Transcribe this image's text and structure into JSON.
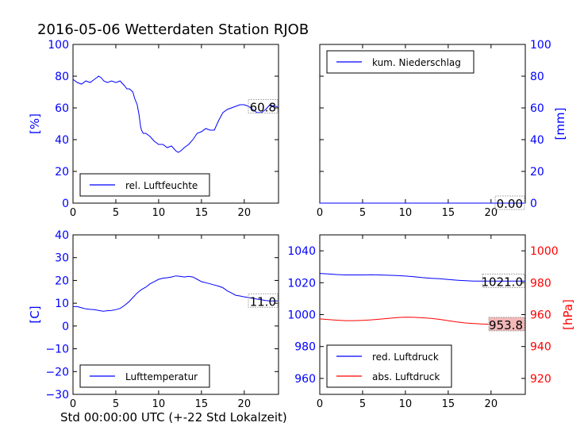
{
  "title": "2016-05-06 Wetterdaten Station RJOB",
  "xlabel": "Std 00:00:00 UTC (+-22 Std Lokalzeit)",
  "colors": {
    "blue": "#0000ff",
    "red": "#ff0000"
  },
  "chart_data": [
    {
      "type": "line",
      "ylabel": "[%]",
      "xlim": [
        0,
        24
      ],
      "ylim": [
        0,
        100
      ],
      "xticks": [
        "0",
        "5",
        "10",
        "15",
        "20"
      ],
      "yticks": [
        "0",
        "20",
        "40",
        "60",
        "80",
        "100"
      ],
      "series": [
        {
          "name": "rel. Luftfeuchte",
          "color": "#0000ff",
          "x": [
            0,
            0.5,
            1,
            1.5,
            2,
            2.5,
            3,
            3.3,
            3.6,
            4,
            4.5,
            5,
            5.5,
            6,
            6.3,
            6.6,
            7,
            7.2,
            7.5,
            7.7,
            7.9,
            8,
            8.2,
            8.5,
            9,
            9.5,
            10,
            10.5,
            11,
            11.5,
            12,
            12.3,
            12.6,
            13,
            13.5,
            14,
            14.5,
            15,
            15.5,
            16,
            16.5,
            17,
            17.5,
            18,
            18.5,
            19,
            19.5,
            20,
            20.5,
            21,
            21.5,
            22,
            22.5,
            23,
            23.5,
            24
          ],
          "y": [
            78,
            76,
            75,
            77,
            76,
            78,
            80,
            79,
            77,
            76,
            77,
            76,
            77,
            74,
            72,
            72,
            70,
            66,
            62,
            56,
            48,
            46,
            44,
            44,
            42,
            39,
            37,
            37,
            35,
            36,
            33,
            32,
            33,
            35,
            37,
            40,
            44,
            45,
            47,
            46,
            46,
            52,
            57,
            59,
            60,
            61,
            62,
            62,
            61,
            59,
            57,
            57,
            59,
            62,
            61,
            60.8
          ]
        }
      ],
      "legend": "lower-left",
      "end_label": "60.8"
    },
    {
      "type": "line",
      "ylabel": "[mm]",
      "xlim": [
        0,
        24
      ],
      "ylim": [
        0,
        100
      ],
      "xticks": [
        "0",
        "5",
        "10",
        "15",
        "20"
      ],
      "yticks": [
        "0",
        "20",
        "40",
        "60",
        "80",
        "100"
      ],
      "y_axis_side": "right",
      "series": [
        {
          "name": "kum. Niederschlag",
          "color": "#0000ff",
          "x": [
            0,
            24
          ],
          "y": [
            0,
            0
          ]
        }
      ],
      "legend": "upper-left",
      "end_label": "0.00"
    },
    {
      "type": "line",
      "ylabel": "[C]",
      "xlim": [
        0,
        24
      ],
      "ylim": [
        -30,
        40
      ],
      "xticks": [
        "0",
        "5",
        "10",
        "15",
        "20"
      ],
      "yticks": [
        "−30",
        "−20",
        "−10",
        "0",
        "10",
        "20",
        "30",
        "40"
      ],
      "series": [
        {
          "name": "Lufttemperatur",
          "color": "#0000ff",
          "x": [
            0,
            0.5,
            1,
            1.5,
            2,
            2.5,
            3,
            3.5,
            4,
            4.5,
            5,
            5.5,
            6,
            6.5,
            7,
            7.5,
            8,
            8.5,
            9,
            9.5,
            10,
            10.5,
            11,
            11.5,
            12,
            12.5,
            13,
            13.5,
            14,
            14.5,
            15,
            15.5,
            16,
            16.5,
            17,
            17.5,
            18,
            18.5,
            19,
            19.5,
            20,
            20.5,
            21,
            21.5,
            22,
            22.5,
            23,
            23.5,
            24
          ],
          "y": [
            8.5,
            8.5,
            8,
            7.5,
            7.3,
            7.2,
            6.8,
            6.5,
            6.7,
            6.8,
            7.2,
            7.7,
            9,
            10.5,
            12.5,
            14.5,
            16,
            17,
            18.5,
            19.5,
            20.5,
            21,
            21.2,
            21.5,
            22,
            21.8,
            21.5,
            21.8,
            21.5,
            20.5,
            19.5,
            19,
            18.5,
            18,
            17.5,
            16.8,
            15.5,
            14.5,
            13.5,
            13.2,
            12.8,
            12.5,
            12.2,
            11.8,
            11.5,
            11.2,
            11,
            11,
            11
          ]
        }
      ],
      "legend": "lower-left",
      "end_label": "11.0"
    },
    {
      "type": "line",
      "ylabel": "[hPa]",
      "xlim": [
        0,
        24
      ],
      "ylim": [
        950,
        1050
      ],
      "ylim_right": [
        910,
        1010
      ],
      "xticks": [
        "0",
        "5",
        "10",
        "15",
        "20"
      ],
      "yticks": [
        "960",
        "980",
        "1000",
        "1020",
        "1040"
      ],
      "yticks_right": [
        "920",
        "940",
        "960",
        "980",
        "1000"
      ],
      "series": [
        {
          "name": "red. Luftdruck",
          "color": "#0000ff",
          "axis": "left",
          "x": [
            0,
            1,
            2,
            3,
            4,
            5,
            6,
            7,
            8,
            9,
            10,
            11,
            12,
            13,
            14,
            15,
            16,
            17,
            18,
            19,
            20,
            21,
            22,
            23,
            24
          ],
          "y": [
            1025.8,
            1025.5,
            1025.1,
            1024.9,
            1024.9,
            1024.9,
            1025,
            1024.9,
            1024.7,
            1024.5,
            1024.2,
            1023.8,
            1023.2,
            1022.8,
            1022.5,
            1022,
            1021.6,
            1021.3,
            1021,
            1021,
            1021,
            1021,
            1021,
            1021,
            1021
          ]
        },
        {
          "name": "abs. Luftdruck",
          "color": "#ff0000",
          "axis": "right",
          "x": [
            0,
            1,
            2,
            3,
            4,
            5,
            6,
            7,
            8,
            9,
            10,
            11,
            12,
            13,
            14,
            15,
            16,
            17,
            18,
            19,
            20,
            21,
            22,
            23,
            24
          ],
          "y": [
            957.3,
            956.9,
            956.5,
            956.2,
            956.2,
            956.4,
            956.7,
            957.1,
            957.6,
            958.1,
            958.4,
            958.3,
            958,
            957.6,
            957,
            956.2,
            955.4,
            954.8,
            954.4,
            954.1,
            954,
            953.9,
            953.8,
            953.8,
            953.8
          ]
        }
      ],
      "legend": "lower-left",
      "end_labels": [
        "1021.0",
        "953.8"
      ]
    }
  ]
}
